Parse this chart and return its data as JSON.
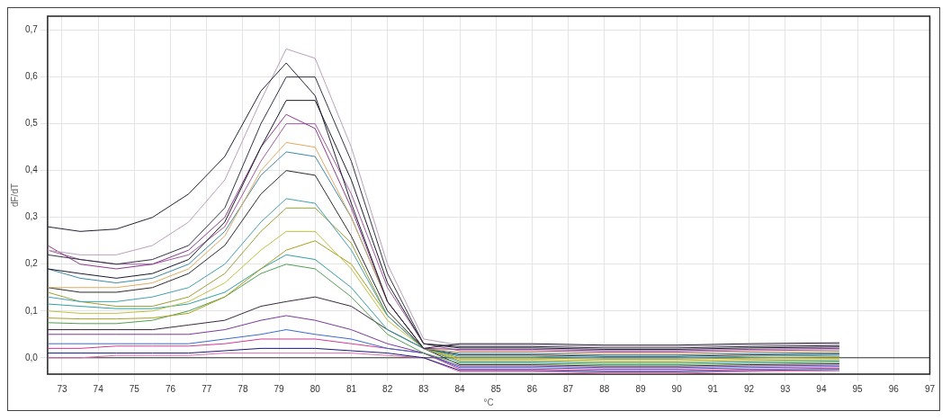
{
  "chart_data": {
    "type": "line",
    "xlabel": "°C",
    "ylabel": "dF/dT",
    "x": [
      72.6,
      73.5,
      74.5,
      75.5,
      76.5,
      77.5,
      78.5,
      79.2,
      80,
      81,
      82,
      83,
      84,
      86,
      88,
      90,
      92,
      94.5
    ],
    "xlim": [
      72.6,
      97
    ],
    "xticks": [
      73,
      74,
      75,
      76,
      77,
      78,
      79,
      80,
      81,
      82,
      83,
      84,
      85,
      86,
      87,
      88,
      89,
      90,
      91,
      92,
      93,
      94,
      95,
      96,
      97
    ],
    "ylim": [
      -0.035,
      0.73
    ],
    "yticks": [
      {
        "value": 0,
        "label": "0,0"
      },
      {
        "value": 0.1,
        "label": "0,1"
      },
      {
        "value": 0.2,
        "label": "0,2"
      },
      {
        "value": 0.3,
        "label": "0,3"
      },
      {
        "value": 0.4,
        "label": "0,4"
      },
      {
        "value": 0.5,
        "label": "0,5"
      },
      {
        "value": 0.6,
        "label": "0,6"
      },
      {
        "value": 0.7,
        "label": "0,7"
      }
    ],
    "grid": true,
    "legend": false,
    "marker": "none",
    "line_style": "solid",
    "ref_lines": [
      {
        "axis": "y",
        "value": 0,
        "color": "#333333"
      }
    ],
    "series": [
      {
        "color": "#222233",
        "values": [
          0.28,
          0.27,
          0.275,
          0.3,
          0.35,
          0.43,
          0.57,
          0.63,
          0.56,
          0.33,
          0.12,
          0.02,
          0.03,
          0.03,
          0.027,
          0.027,
          0.03,
          0.032
        ]
      },
      {
        "color": "#b8a0b8",
        "values": [
          0.23,
          0.22,
          0.22,
          0.24,
          0.29,
          0.38,
          0.55,
          0.66,
          0.64,
          0.45,
          0.2,
          0.04,
          0.027,
          0.027,
          0.024,
          0.024,
          0.027,
          0.029
        ]
      },
      {
        "color": "#333344",
        "values": [
          0.22,
          0.21,
          0.2,
          0.21,
          0.24,
          0.32,
          0.5,
          0.6,
          0.6,
          0.42,
          0.18,
          0.03,
          0.024,
          0.024,
          0.021,
          0.021,
          0.024,
          0.026
        ]
      },
      {
        "color": "#1a1a2a",
        "values": [
          0.19,
          0.18,
          0.17,
          0.18,
          0.21,
          0.29,
          0.45,
          0.55,
          0.55,
          0.38,
          0.16,
          0.03,
          0.021,
          0.021,
          0.018,
          0.018,
          0.021,
          0.023
        ]
      },
      {
        "color": "#8a3a8a",
        "values": [
          0.24,
          0.2,
          0.19,
          0.2,
          0.23,
          0.3,
          0.45,
          0.52,
          0.49,
          0.32,
          0.12,
          0.02,
          0.018,
          0.018,
          0.015,
          0.015,
          0.018,
          0.02
        ]
      },
      {
        "color": "#a05aa0",
        "values": [
          0.23,
          0.21,
          0.2,
          0.2,
          0.22,
          0.28,
          0.42,
          0.5,
          0.5,
          0.35,
          0.15,
          0.03,
          0.015,
          0.015,
          0.012,
          0.012,
          0.015,
          0.017
        ]
      },
      {
        "color": "#e0a860",
        "values": [
          0.15,
          0.15,
          0.15,
          0.16,
          0.19,
          0.26,
          0.4,
          0.46,
          0.45,
          0.3,
          0.12,
          0.02,
          0.012,
          0.012,
          0.009,
          0.009,
          0.012,
          0.014
        ]
      },
      {
        "color": "#3a8aa8",
        "values": [
          0.19,
          0.17,
          0.16,
          0.17,
          0.2,
          0.27,
          0.39,
          0.44,
          0.43,
          0.3,
          0.12,
          0.02,
          0.009,
          0.009,
          0.006,
          0.006,
          0.009,
          0.011
        ]
      },
      {
        "color": "#2a2a2a",
        "values": [
          0.15,
          0.14,
          0.14,
          0.15,
          0.18,
          0.24,
          0.35,
          0.4,
          0.39,
          0.26,
          0.1,
          0.02,
          0.006,
          0.006,
          0.003,
          0.003,
          0.006,
          0.008
        ]
      },
      {
        "color": "#40a0b0",
        "values": [
          0.13,
          0.12,
          0.12,
          0.13,
          0.15,
          0.2,
          0.29,
          0.34,
          0.33,
          0.23,
          0.09,
          0.02,
          0.003,
          0.003,
          0,
          0,
          0.003,
          0.005
        ]
      },
      {
        "color": "#9aa030",
        "values": [
          0.14,
          0.12,
          0.11,
          0.11,
          0.13,
          0.18,
          0.27,
          0.32,
          0.32,
          0.245,
          0.09,
          0.02,
          0,
          0,
          -0.003,
          -0.003,
          0,
          0.002
        ]
      },
      {
        "color": "#c0c040",
        "values": [
          0.1,
          0.095,
          0.095,
          0.1,
          0.12,
          0.16,
          0.23,
          0.27,
          0.27,
          0.19,
          0.08,
          0.02,
          -0.003,
          -0.003,
          -0.006,
          -0.006,
          -0.003,
          -0.001
        ]
      },
      {
        "color": "#a8a020",
        "values": [
          0.085,
          0.083,
          0.083,
          0.085,
          0.095,
          0.13,
          0.19,
          0.23,
          0.25,
          0.2,
          0.09,
          0.02,
          -0.006,
          -0.006,
          -0.009,
          -0.009,
          -0.006,
          -0.004
        ]
      },
      {
        "color": "#30a0a0",
        "values": [
          0.115,
          0.11,
          0.105,
          0.105,
          0.115,
          0.14,
          0.19,
          0.22,
          0.21,
          0.15,
          0.06,
          0.02,
          -0.009,
          -0.009,
          -0.012,
          -0.012,
          -0.009,
          -0.007
        ]
      },
      {
        "color": "#50a050",
        "values": [
          0.075,
          0.073,
          0.073,
          0.08,
          0.1,
          0.13,
          0.18,
          0.2,
          0.19,
          0.13,
          0.05,
          0.01,
          -0.012,
          -0.012,
          -0.015,
          -0.015,
          -0.012,
          -0.01
        ]
      },
      {
        "color": "#3a2a3a",
        "values": [
          0.06,
          0.06,
          0.06,
          0.06,
          0.07,
          0.08,
          0.11,
          0.12,
          0.13,
          0.11,
          0.06,
          0.02,
          -0.015,
          -0.015,
          -0.018,
          -0.018,
          -0.015,
          -0.013
        ]
      },
      {
        "color": "#7a3a9a",
        "values": [
          0.05,
          0.05,
          0.05,
          0.05,
          0.05,
          0.06,
          0.08,
          0.09,
          0.08,
          0.06,
          0.03,
          0.01,
          -0.018,
          -0.018,
          -0.021,
          -0.021,
          -0.018,
          -0.016
        ]
      },
      {
        "color": "#3a6ad0",
        "values": [
          0.03,
          0.03,
          0.03,
          0.03,
          0.03,
          0.04,
          0.05,
          0.06,
          0.05,
          0.04,
          0.02,
          0.01,
          -0.021,
          -0.021,
          -0.024,
          -0.024,
          -0.021,
          -0.019
        ]
      },
      {
        "color": "#d03a90",
        "values": [
          0.02,
          0.02,
          0.025,
          0.025,
          0.025,
          0.03,
          0.04,
          0.04,
          0.04,
          0.03,
          0.02,
          0.01,
          -0.024,
          -0.024,
          -0.027,
          -0.027,
          -0.024,
          -0.022
        ]
      },
      {
        "color": "#1a1a80",
        "values": [
          0.01,
          0.01,
          0.01,
          0.01,
          0.01,
          0.015,
          0.02,
          0.02,
          0.02,
          0.015,
          0.01,
          0.0,
          -0.027,
          -0.027,
          -0.03,
          -0.03,
          -0.027,
          -0.025
        ]
      },
      {
        "color": "#e070b0",
        "values": [
          0.0,
          0.0,
          0.005,
          0.005,
          0.005,
          0.01,
          0.01,
          0.01,
          0.01,
          0.01,
          0.005,
          0.0,
          -0.03,
          -0.03,
          -0.033,
          -0.033,
          -0.03,
          -0.028
        ]
      }
    ]
  }
}
